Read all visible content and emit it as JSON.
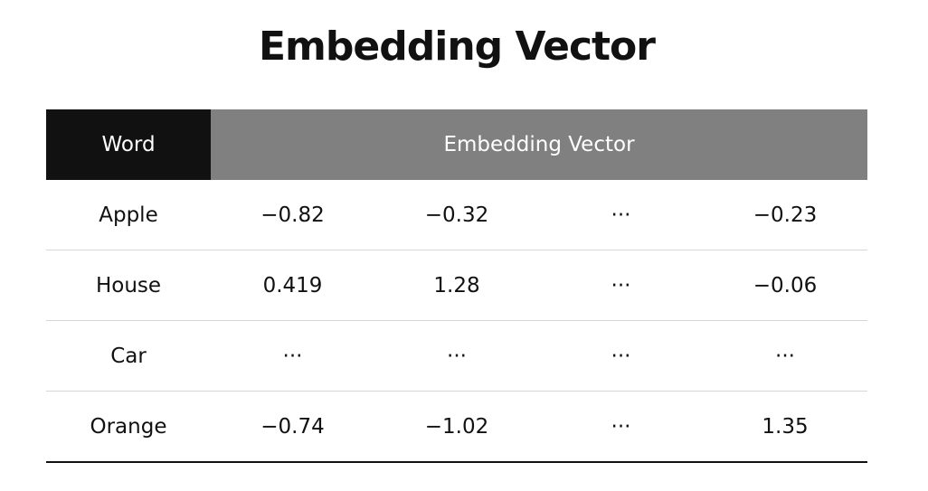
{
  "title": "Embedding Vector",
  "table": {
    "headers": {
      "word": "Word",
      "vector": "Embedding Vector"
    },
    "rows": [
      {
        "word": "Apple",
        "values": [
          "−0.82",
          "−0.32",
          "···",
          "−0.23"
        ]
      },
      {
        "word": "House",
        "values": [
          "0.419",
          "1.28",
          "···",
          "−0.06"
        ]
      },
      {
        "word": "Car",
        "values": [
          "···",
          "···",
          "···",
          "···"
        ]
      },
      {
        "word": "Orange",
        "values": [
          "−0.74",
          "−1.02",
          "···",
          "1.35"
        ]
      }
    ]
  }
}
